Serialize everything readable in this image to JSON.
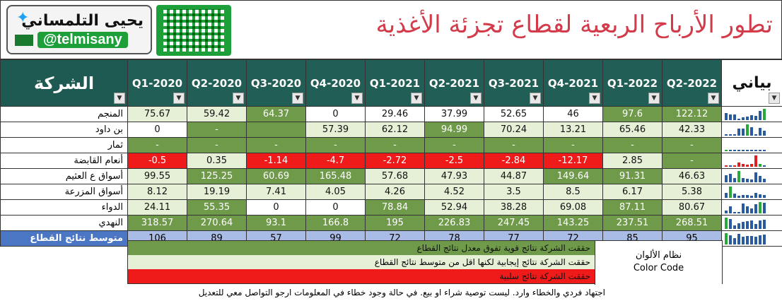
{
  "header": {
    "brand_name": "يحيى التلمساني",
    "handle": "@telmisany",
    "title": "تطور الأرباح الربعية لقطاع تجزئة الأغذية"
  },
  "table": {
    "company_header": "الشركة",
    "spark_header": "بياني",
    "quarters": [
      "Q1-2020",
      "Q2-2020",
      "Q3-2020",
      "Q4-2020",
      "Q1-2021",
      "Q2-2021",
      "Q3-2021",
      "Q4-2021",
      "Q1-2022",
      "Q2-2022"
    ],
    "rows": [
      {
        "name": "المنجم",
        "values": [
          "75.67",
          "59.42",
          "64.37",
          "0",
          "29.46",
          "37.99",
          "52.65",
          "46",
          "97.6",
          "122.12"
        ],
        "colors": [
          "p",
          "p",
          "g",
          "w",
          "w",
          "w",
          "w",
          "w",
          "g",
          "g"
        ]
      },
      {
        "name": "بن داود",
        "values": [
          "0",
          "-",
          "",
          "57.39",
          "62.12",
          "94.99",
          "70.24",
          "13.21",
          "65.46",
          "42.33"
        ],
        "colors": [
          "w",
          "g",
          "g",
          "p",
          "p",
          "g",
          "p",
          "p",
          "p",
          "p"
        ]
      },
      {
        "name": "ثمار",
        "values": [
          "-",
          "-",
          "-",
          "-",
          "-",
          "-",
          "-",
          "-",
          "-",
          "-"
        ],
        "colors": [
          "g",
          "g",
          "g",
          "g",
          "g",
          "g",
          "g",
          "g",
          "g",
          "g"
        ]
      },
      {
        "name": "أنعام القابضة",
        "values": [
          "-0.5",
          "0.35",
          "-1.14",
          "-4.7",
          "-2.72",
          "-2.5",
          "-2.84",
          "-12.17",
          "2.85",
          "-"
        ],
        "colors": [
          "r",
          "p",
          "r",
          "r",
          "r",
          "r",
          "r",
          "r",
          "p",
          "g"
        ]
      },
      {
        "name": "أسواق ع العثيم",
        "values": [
          "99.55",
          "125.25",
          "60.69",
          "165.48",
          "57.68",
          "47.93",
          "44.87",
          "149.64",
          "91.31",
          "46.63"
        ],
        "colors": [
          "p",
          "g",
          "g",
          "g",
          "p",
          "p",
          "p",
          "g",
          "g",
          "p"
        ]
      },
      {
        "name": "أسواق المزرعة",
        "values": [
          "8.12",
          "19.19",
          "7.41",
          "4.05",
          "4.26",
          "4.52",
          "3.5",
          "8.5",
          "6.17",
          "5.38"
        ],
        "colors": [
          "p",
          "p",
          "p",
          "p",
          "p",
          "p",
          "p",
          "p",
          "p",
          "p"
        ]
      },
      {
        "name": "الدواء",
        "values": [
          "24.11",
          "55.35",
          "0",
          "0",
          "78.84",
          "52.94",
          "38.28",
          "69.08",
          "87.11",
          "80.67"
        ],
        "colors": [
          "p",
          "g",
          "w",
          "w",
          "g",
          "p",
          "p",
          "p",
          "g",
          "p"
        ]
      },
      {
        "name": "النهدي",
        "values": [
          "318.57",
          "270.64",
          "93.1",
          "166.8",
          "195",
          "226.83",
          "247.45",
          "143.25",
          "237.51",
          "268.51"
        ],
        "colors": [
          "g",
          "g",
          "g",
          "g",
          "g",
          "g",
          "g",
          "g",
          "g",
          "g"
        ]
      }
    ],
    "average": {
      "name": "متوسط نتائج القطاع",
      "values": [
        "106",
        "89",
        "57",
        "99",
        "72",
        "78",
        "77",
        "72",
        "85",
        "95"
      ]
    }
  },
  "legend": {
    "title_ar": "نظام الألوان",
    "title_en": "Color Code",
    "items": [
      {
        "text": "حققت الشركة نتائج قوية تفوق معدل نتائج القطاع",
        "color": "#6f9a4a"
      },
      {
        "text": "حققت الشركة نتائج إيجابية لكنها اقل من متوسط نتائج القطاع",
        "color": "#e6f0d6"
      },
      {
        "text": "حققت الشركة نتائج سلبية",
        "color": "#ef1b1b"
      }
    ]
  },
  "footer": "اجتهاد فردي والخطاء وارد. ليست توصية شراء او بيع. في حالة وجود خطاء في المعلومات ارجو التواصل معي للتعديل"
}
